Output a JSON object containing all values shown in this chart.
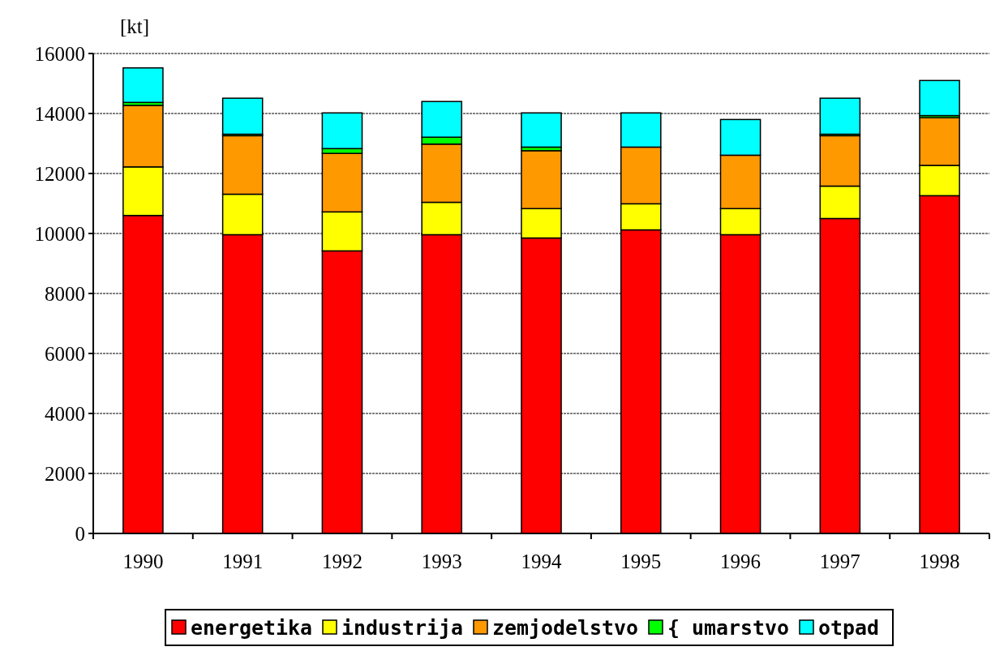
{
  "chart_data": {
    "type": "bar",
    "stacked": true,
    "ylabel": "[kt]",
    "categories": [
      "1990",
      "1991",
      "1992",
      "1993",
      "1994",
      "1995",
      "1996",
      "1997",
      "1998"
    ],
    "series": [
      {
        "name": "energetika",
        "color": "#ff0000",
        "values": [
          10600,
          9960,
          9420,
          9960,
          9850,
          10120,
          9960,
          10500,
          11260
        ]
      },
      {
        "name": "industrija",
        "color": "#ffff00",
        "values": [
          1620,
          1350,
          1300,
          1080,
          980,
          870,
          870,
          1080,
          1010
        ]
      },
      {
        "name": "zemjodelstvo",
        "color": "#ff9900",
        "values": [
          2050,
          1950,
          1950,
          1940,
          1930,
          1890,
          1780,
          1680,
          1590
        ]
      },
      {
        "name": "{ umarstvo",
        "color": "#00ff00",
        "values": [
          100,
          50,
          160,
          230,
          120,
          null,
          null,
          50,
          70
        ]
      },
      {
        "name": "otpad",
        "color": "#00ffff",
        "values": [
          1150,
          1200,
          1190,
          1190,
          1140,
          1140,
          1190,
          1200,
          1170
        ]
      }
    ],
    "ylim": [
      0,
      16000
    ],
    "yticks": [
      0,
      2000,
      4000,
      6000,
      8000,
      10000,
      12000,
      14000,
      16000
    ],
    "grid": "y",
    "legend": "bottom"
  }
}
